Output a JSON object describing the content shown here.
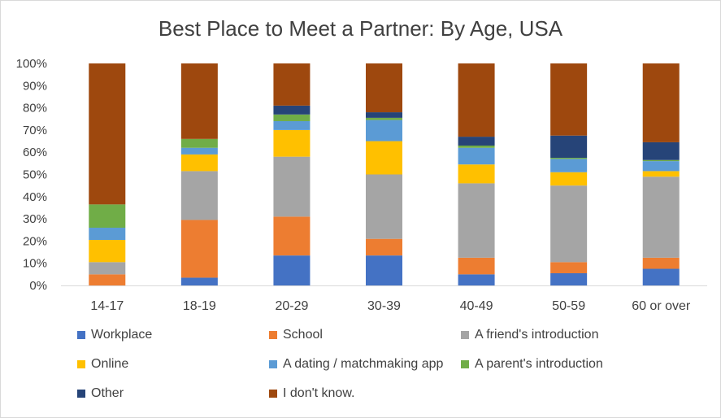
{
  "chart_data": {
    "type": "bar",
    "stacked": true,
    "title": "Best Place to Meet a Partner: By Age, USA",
    "categories": [
      "14-17",
      "18-19",
      "20-29",
      "30-39",
      "40-49",
      "50-59",
      "60 or over"
    ],
    "ylim": [
      0,
      100
    ],
    "yticks": [
      "0%",
      "10%",
      "20%",
      "30%",
      "40%",
      "50%",
      "60%",
      "70%",
      "80%",
      "90%",
      "100%"
    ],
    "grid": false,
    "legend_position": "bottom",
    "series": [
      {
        "name": "Workplace",
        "color": "#4472c4",
        "values": [
          0,
          3.5,
          13.5,
          13.5,
          5,
          5.5,
          7.5
        ]
      },
      {
        "name": "School",
        "color": "#ed7d31",
        "values": [
          5,
          26,
          17.5,
          7.5,
          7.5,
          5,
          5
        ]
      },
      {
        "name": "A friend's introduction",
        "color": "#a5a5a5",
        "values": [
          5.5,
          22,
          27,
          29,
          33.5,
          34.5,
          36.5
        ]
      },
      {
        "name": "Online",
        "color": "#ffc000",
        "values": [
          10,
          7.5,
          12,
          15,
          8.5,
          6,
          2.5
        ]
      },
      {
        "name": "A dating / matchmaking app",
        "color": "#5b9bd5",
        "values": [
          5.5,
          3,
          4,
          9.5,
          7.5,
          6,
          4.5
        ]
      },
      {
        "name": "A parent's introduction",
        "color": "#70ad47",
        "values": [
          10.5,
          4,
          3,
          1,
          1,
          0.5,
          0.5
        ]
      },
      {
        "name": "Other",
        "color": "#264478",
        "values": [
          0,
          0,
          4,
          2.5,
          4,
          10,
          8
        ]
      },
      {
        "name": "I don't know.",
        "color": "#9e480e",
        "values": [
          63.5,
          34,
          19,
          22,
          33,
          32.5,
          35.5
        ]
      }
    ]
  }
}
